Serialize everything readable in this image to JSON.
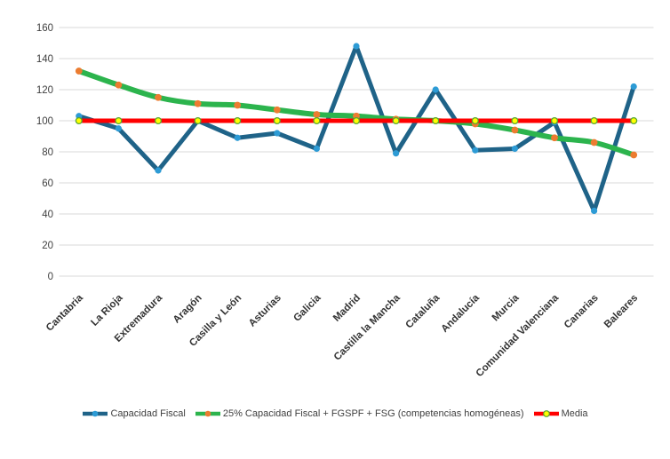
{
  "chart_data": {
    "type": "line",
    "title": "",
    "categories": [
      "Cantabria",
      "La Rioja",
      "Extremadura",
      "Aragón",
      "Casilla y León",
      "Asturias",
      "Galicia",
      "Madrid",
      "Castilla la Mancha",
      "Cataluña",
      "Andalucía",
      "Murcia",
      "Comunidad Valenciana",
      "Canarias",
      "Baleares"
    ],
    "series": [
      {
        "name": "Capacidad Fiscal",
        "values": [
          103,
          95,
          68,
          100,
          89,
          92,
          82,
          148,
          79,
          120,
          81,
          82,
          99,
          42,
          122
        ],
        "line_color": "#1F6388",
        "line_width": 5,
        "marker_color": "#2D9BD5",
        "marker_border": "none",
        "marker_size": 3.6,
        "smooth": false
      },
      {
        "name": "25% Capacidad Fiscal + FGSPF + FSG (competencias homogéneas)",
        "values": [
          132,
          123,
          115,
          111,
          110,
          107,
          104,
          103,
          101,
          100,
          98,
          94,
          89,
          86,
          78
        ],
        "line_color": "#2CB44D",
        "line_width": 6,
        "marker_color": "#EC7C30",
        "marker_border": "none",
        "marker_size": 3.9,
        "smooth": true
      },
      {
        "name": "Media",
        "values": [
          100,
          100,
          100,
          100,
          100,
          100,
          100,
          100,
          100,
          100,
          100,
          100,
          100,
          100,
          100
        ],
        "line_color": "#FF0000",
        "line_width": 5,
        "marker_color": "#FFFF00",
        "marker_border": "#56A632",
        "marker_size": 3.4,
        "smooth": false
      }
    ],
    "ylim": [
      0,
      160
    ],
    "ytick_step": 20,
    "ytick_labels": [
      "0",
      "20",
      "40",
      "60",
      "80",
      "100",
      "120",
      "140",
      "160"
    ],
    "xlabel": "",
    "ylabel": "",
    "grid": true,
    "gridline_color": "#DADADA",
    "background": "#FFFFFF",
    "legend_position": "bottom"
  }
}
